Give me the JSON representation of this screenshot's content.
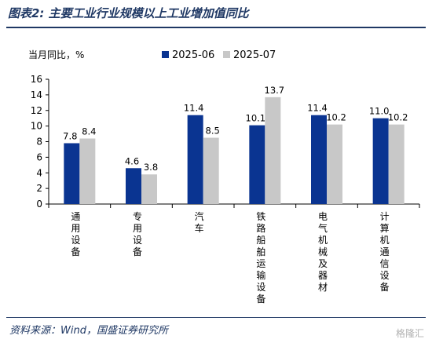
{
  "title": "图表2: 主要工业行业规模以上工业增加值同比",
  "source": "资料来源：Wind，国盛证券研究所",
  "watermark": "格隆汇",
  "colors": {
    "brand": "#1f3864",
    "series_2025_06": "#0a3491",
    "series_2025_07": "#c8c8c8"
  },
  "chart_data": {
    "type": "bar",
    "ylabel": "当月同比，%",
    "ylim": [
      0,
      16
    ],
    "yticks": [
      0,
      2,
      4,
      6,
      8,
      10,
      12,
      14,
      16
    ],
    "categories": [
      "通用设备",
      "专用设备",
      "汽车",
      "铁路船舶运输设备",
      "电气机械及器材",
      "计算机通信设备"
    ],
    "series": [
      {
        "name": "2025-06",
        "values": [
          7.8,
          4.6,
          11.4,
          10.1,
          11.4,
          11.0
        ]
      },
      {
        "name": "2025-07",
        "values": [
          8.4,
          3.8,
          8.5,
          13.7,
          10.2,
          10.2
        ]
      }
    ],
    "legend": "top",
    "grid": false
  }
}
